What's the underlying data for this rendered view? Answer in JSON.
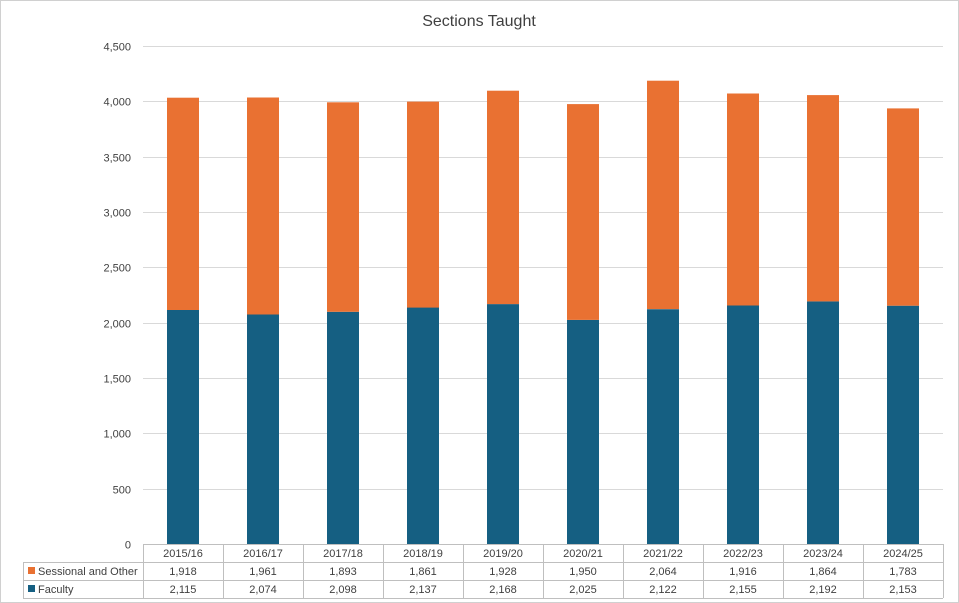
{
  "chart_data": {
    "type": "bar",
    "stacked": true,
    "title": "Sections Taught",
    "categories": [
      "2015/16",
      "2016/17",
      "2017/18",
      "2018/19",
      "2019/20",
      "2020/21",
      "2021/22",
      "2022/23",
      "2023/24",
      "2024/25"
    ],
    "series": [
      {
        "name": "Faculty",
        "color": "#155f82",
        "values": [
          2115,
          2074,
          2098,
          2137,
          2168,
          2025,
          2122,
          2155,
          2192,
          2153
        ],
        "labels": [
          "2,115",
          "2,074",
          "2,098",
          "2,137",
          "2,168",
          "2,025",
          "2,122",
          "2,155",
          "2,192",
          "2,153"
        ]
      },
      {
        "name": "Sessional and Other",
        "color": "#e97132",
        "values": [
          1918,
          1961,
          1893,
          1861,
          1928,
          1950,
          2064,
          1916,
          1864,
          1783
        ],
        "labels": [
          "1,918",
          "1,961",
          "1,893",
          "1,861",
          "1,928",
          "1,950",
          "2,064",
          "1,916",
          "1,864",
          "1,783"
        ]
      }
    ],
    "ylim": [
      0,
      4500
    ],
    "yticks": [
      0,
      500,
      1000,
      1500,
      2000,
      2500,
      3000,
      3500,
      4000,
      4500
    ],
    "ytick_labels": [
      "0",
      "500",
      "1,000",
      "1,500",
      "2,000",
      "2,500",
      "3,000",
      "3,500",
      "4,000",
      "4,500"
    ],
    "grid": true,
    "data_table": true
  }
}
